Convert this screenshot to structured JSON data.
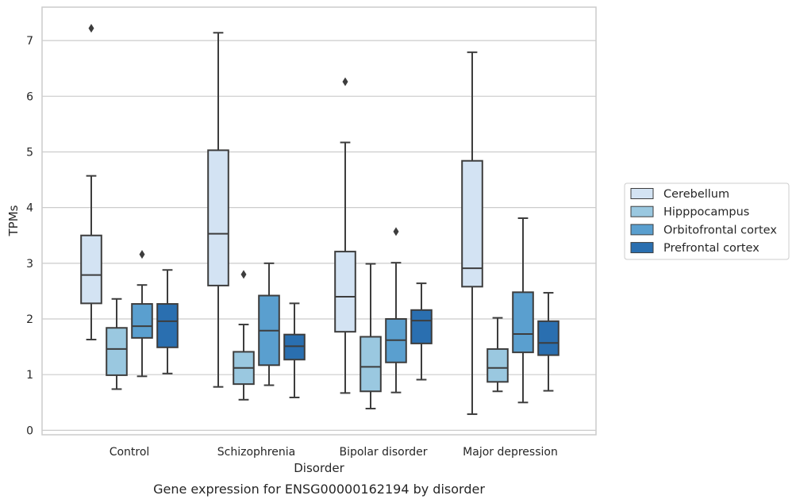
{
  "chart_data": {
    "type": "box",
    "caption": "Gene expression for ENSG00000162194 by disorder",
    "xlabel": "Disorder",
    "ylabel": "TPMs",
    "ylim": [
      -0.08,
      7.6
    ],
    "yticks": [
      0,
      1,
      2,
      3,
      4,
      5,
      6,
      7
    ],
    "grid": "horizontal",
    "legend_placement": "right",
    "categories": [
      "Control",
      "Schizophrenia",
      "Bipolar disorder",
      "Major depression"
    ],
    "series": [
      {
        "name": "Cerebellum",
        "color": "#d3e3f3",
        "boxes": [
          {
            "whisker_low": 1.63,
            "q1": 2.28,
            "median": 2.79,
            "q3": 3.5,
            "whisker_high": 4.57,
            "outliers": [
              7.22
            ]
          },
          {
            "whisker_low": 0.78,
            "q1": 2.6,
            "median": 3.53,
            "q3": 5.03,
            "whisker_high": 7.14,
            "outliers": []
          },
          {
            "whisker_low": 0.67,
            "q1": 1.77,
            "median": 2.4,
            "q3": 3.21,
            "whisker_high": 5.17,
            "outliers": [
              6.26
            ]
          },
          {
            "whisker_low": 0.29,
            "q1": 2.58,
            "median": 2.91,
            "q3": 4.84,
            "whisker_high": 6.79,
            "outliers": []
          }
        ]
      },
      {
        "name": "Hipppocampus",
        "color": "#9ac8e0",
        "boxes": [
          {
            "whisker_low": 0.74,
            "q1": 0.99,
            "median": 1.46,
            "q3": 1.84,
            "whisker_high": 2.36,
            "outliers": []
          },
          {
            "whisker_low": 0.55,
            "q1": 0.83,
            "median": 1.12,
            "q3": 1.41,
            "whisker_high": 1.9,
            "outliers": [
              2.8
            ]
          },
          {
            "whisker_low": 0.39,
            "q1": 0.7,
            "median": 1.14,
            "q3": 1.68,
            "whisker_high": 2.99,
            "outliers": []
          },
          {
            "whisker_low": 0.7,
            "q1": 0.87,
            "median": 1.12,
            "q3": 1.46,
            "whisker_high": 2.02,
            "outliers": []
          }
        ]
      },
      {
        "name": "Orbitofrontal cortex",
        "color": "#5a9fcf",
        "boxes": [
          {
            "whisker_low": 0.97,
            "q1": 1.66,
            "median": 1.87,
            "q3": 2.27,
            "whisker_high": 2.61,
            "outliers": [
              3.16
            ]
          },
          {
            "whisker_low": 0.81,
            "q1": 1.17,
            "median": 1.79,
            "q3": 2.42,
            "whisker_high": 3.0,
            "outliers": []
          },
          {
            "whisker_low": 0.68,
            "q1": 1.22,
            "median": 1.62,
            "q3": 2.0,
            "whisker_high": 3.01,
            "outliers": [
              3.57
            ]
          },
          {
            "whisker_low": 0.5,
            "q1": 1.4,
            "median": 1.73,
            "q3": 2.48,
            "whisker_high": 3.81,
            "outliers": []
          }
        ]
      },
      {
        "name": "Prefrontal cortex",
        "color": "#2a6fb0",
        "boxes": [
          {
            "whisker_low": 1.02,
            "q1": 1.49,
            "median": 1.96,
            "q3": 2.27,
            "whisker_high": 2.88,
            "outliers": []
          },
          {
            "whisker_low": 0.59,
            "q1": 1.27,
            "median": 1.51,
            "q3": 1.72,
            "whisker_high": 2.28,
            "outliers": []
          },
          {
            "whisker_low": 0.91,
            "q1": 1.56,
            "median": 1.97,
            "q3": 2.16,
            "whisker_high": 2.64,
            "outliers": []
          },
          {
            "whisker_low": 0.71,
            "q1": 1.35,
            "median": 1.57,
            "q3": 1.96,
            "whisker_high": 2.47,
            "outliers": []
          }
        ]
      }
    ]
  }
}
